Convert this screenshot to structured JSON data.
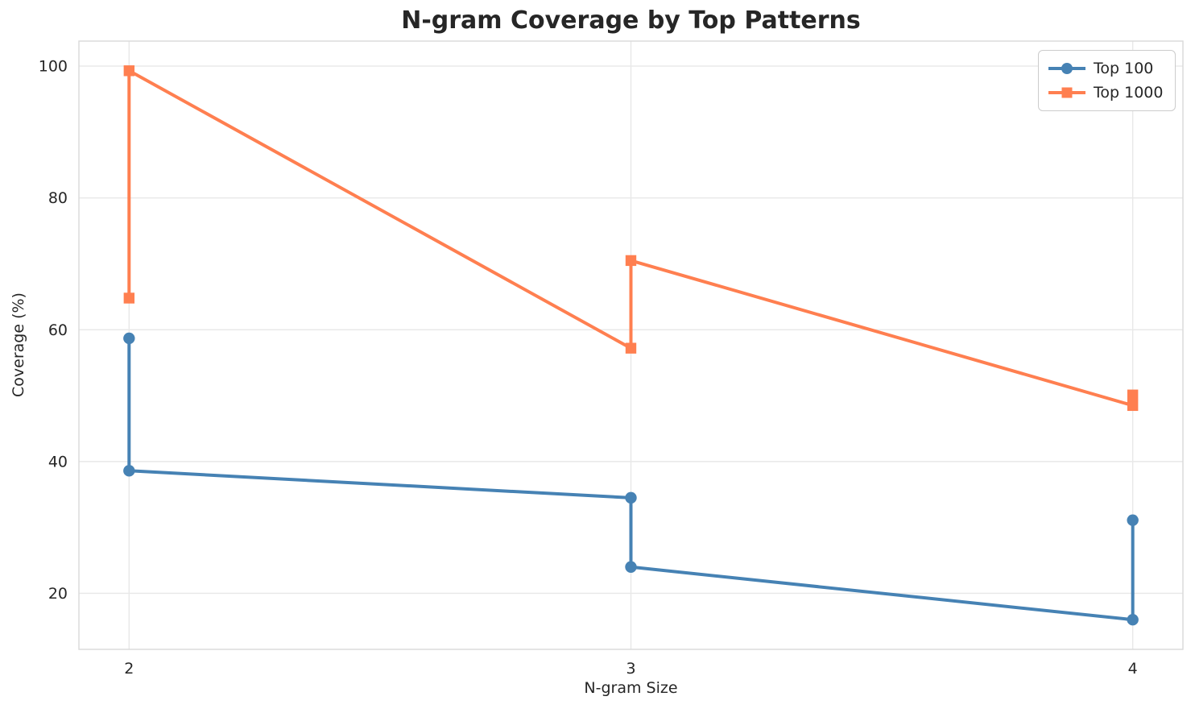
{
  "chart_data": {
    "type": "line",
    "title": "N-gram Coverage by Top Patterns",
    "xlabel": "N-gram Size",
    "ylabel": "Coverage (%)",
    "xlim": [
      1.9,
      4.1
    ],
    "ylim": [
      11.5,
      103.8
    ],
    "xticks": [
      2,
      3,
      4
    ],
    "yticks": [
      20,
      40,
      60,
      80,
      100
    ],
    "grid": true,
    "legend_position": "upper right",
    "series": [
      {
        "name": "Top 100",
        "color": "#4682B4",
        "marker": "circle",
        "points": [
          [
            2,
            58.7
          ],
          [
            2,
            38.6
          ],
          [
            3,
            34.5
          ],
          [
            3,
            24.0
          ],
          [
            4,
            16.0
          ],
          [
            4,
            31.1
          ]
        ]
      },
      {
        "name": "Top 1000",
        "color": "#FF7F50",
        "marker": "square",
        "points": [
          [
            2,
            64.8
          ],
          [
            2,
            99.3
          ],
          [
            3,
            57.2
          ],
          [
            3,
            70.5
          ],
          [
            4,
            48.5
          ],
          [
            4,
            50.1
          ]
        ]
      }
    ],
    "style": {
      "grid_color": "#e8e8e8",
      "spine_color": "#d9d9d9",
      "text_color": "#262626",
      "background": "#ffffff"
    }
  }
}
